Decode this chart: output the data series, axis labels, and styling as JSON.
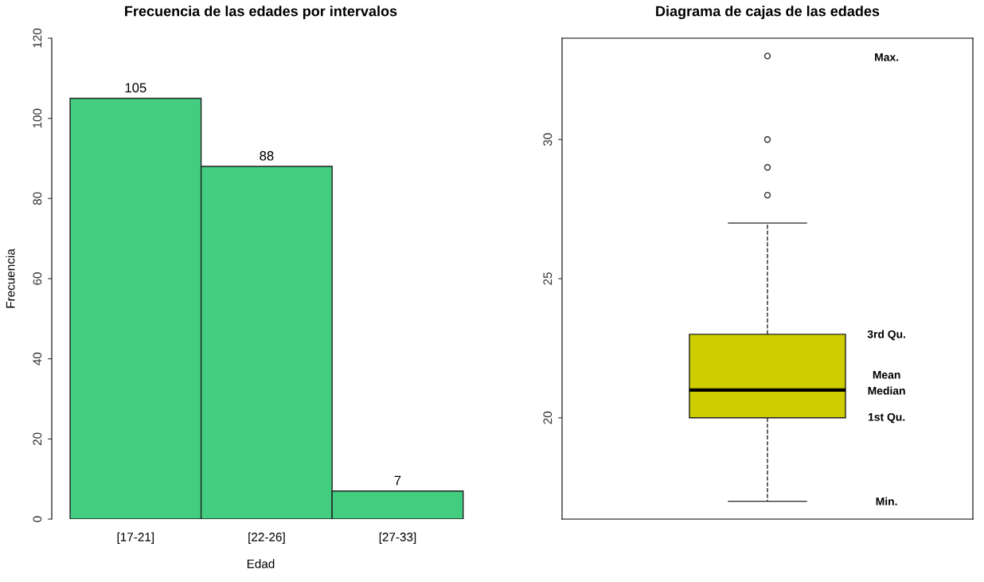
{
  "chart_data": [
    {
      "type": "bar",
      "title": "Frecuencia de las edades por intervalos",
      "xlabel": "Edad",
      "ylabel": "Frecuencia",
      "categories": [
        "[17-21]",
        "[22-26]",
        "[27-33]"
      ],
      "values": [
        105,
        88,
        7
      ],
      "color": "#43cd80",
      "ylim": [
        0,
        120
      ],
      "yticks": [
        0,
        20,
        40,
        60,
        80,
        100,
        120
      ],
      "data_labels": true,
      "grid": false,
      "legend": false
    },
    {
      "type": "box",
      "title": "Diagrama de cajas de las edades",
      "categories": [
        null
      ],
      "color": "#cdcd00",
      "boxes": [
        {
          "low": 17,
          "q1": 20,
          "median": 21,
          "q3": 23,
          "high": 27,
          "outliers": [
            28,
            29,
            30,
            33
          ]
        }
      ],
      "ylim": [
        16.36,
        33.64
      ],
      "yticks": [
        20,
        25,
        30
      ],
      "tick_labels": "y",
      "grid": false,
      "legend": false,
      "annotations": [
        "Max.",
        "3rd Qu.",
        "Mean",
        "Median",
        "1st Qu.",
        "Min."
      ]
    }
  ]
}
